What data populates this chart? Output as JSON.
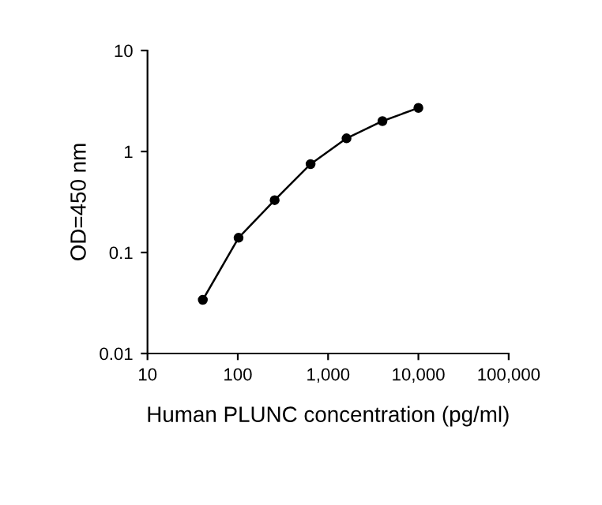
{
  "chart_data": {
    "type": "line",
    "xlabel": "Human PLUNC concentration (pg/ml)",
    "ylabel": "OD=450 nm",
    "x": [
      41,
      102,
      256,
      640,
      1600,
      4000,
      10000
    ],
    "series": [
      {
        "color": "#000000",
        "values": [
          0.034,
          0.14,
          0.33,
          0.75,
          1.35,
          2.0,
          2.7
        ]
      }
    ],
    "log": "xy",
    "xlim": [
      10,
      100000
    ],
    "ylim": [
      0.01,
      10
    ],
    "xticks": [
      10,
      100,
      {
        "value": 1000,
        "label": "1,000"
      },
      {
        "value": 10000,
        "label": "10,000"
      },
      {
        "value": 100000,
        "label": "100,000"
      }
    ],
    "yticks": [
      0.01,
      0.1,
      1,
      10
    ],
    "marker": "circle",
    "line_style": "solid",
    "grid": false,
    "legend": false
  }
}
